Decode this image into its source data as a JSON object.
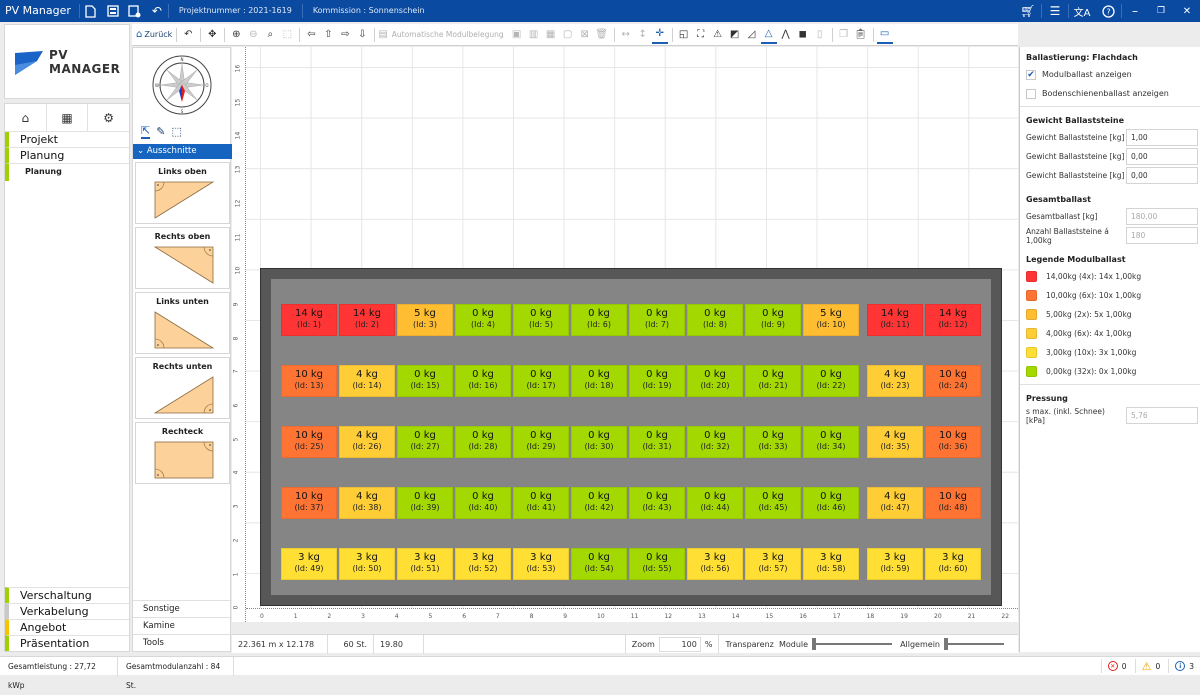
{
  "titlebar": {
    "app_name": "PV Manager",
    "projektnummer_label": "Projektnummer :",
    "projektnummer": "2021-1619",
    "kommission_label": "Kommission :",
    "kommission": "Sonnenschein",
    "icons": [
      "new-document-icon",
      "save-icon",
      "save-as-icon",
      "undo-icon",
      "cart-icon",
      "list-icon",
      "translate-icon",
      "help-icon",
      "minimize-icon",
      "restore-icon",
      "close-icon"
    ]
  },
  "logo": {
    "text": "PV MANAGER"
  },
  "nav": {
    "tabs": [
      {
        "icon": "home-icon"
      },
      {
        "icon": "widgets-icon"
      },
      {
        "icon": "gear-icon"
      }
    ],
    "items_top": [
      {
        "label": "Projekt",
        "color": "#9fd100"
      },
      {
        "label": "Planung",
        "color": "#9fd100"
      }
    ],
    "sub_item": "Planung",
    "items_bottom": [
      {
        "label": "Verschaltung",
        "color": "#9fd100"
      },
      {
        "label": "Verkabelung",
        "color": "#c8c8c8"
      },
      {
        "label": "Angebot",
        "color": "#f5c400"
      },
      {
        "label": "Präsentation",
        "color": "#9fd100"
      }
    ]
  },
  "toolbar": {
    "back_label": "Zurück",
    "auto_label": "Automatische Modulbelegung"
  },
  "side2": {
    "section": "Ausschnitte",
    "shapes": [
      {
        "label": "Links oben"
      },
      {
        "label": "Rechts oben"
      },
      {
        "label": "Links unten"
      },
      {
        "label": "Rechts unten"
      },
      {
        "label": "Rechteck"
      }
    ],
    "bottom": [
      "Sonstige",
      "Kamine",
      "Tools"
    ]
  },
  "canvas": {
    "h_ruler": [
      "0",
      "1",
      "2",
      "3",
      "4",
      "5",
      "6",
      "7",
      "8",
      "9",
      "10",
      "11",
      "12",
      "13",
      "14",
      "15",
      "16",
      "17",
      "18",
      "19",
      "20",
      "21",
      "22"
    ],
    "v_ruler": [
      "16",
      "15",
      "14",
      "13",
      "12",
      "11",
      "10",
      "9",
      "8",
      "7",
      "6",
      "5",
      "4",
      "3",
      "2",
      "1",
      "0"
    ],
    "colors": {
      "14": "#ff3535",
      "10": "#ff7433",
      "5": "#ffbd32",
      "4": "#ffcd36",
      "3": "#ffdf33",
      "0": "#a3d900"
    },
    "rows": [
      [
        {
          "kg": "14",
          "id": "1"
        },
        {
          "kg": "14",
          "id": "2"
        },
        {
          "kg": "5",
          "id": "3"
        },
        {
          "kg": "0",
          "id": "4"
        },
        {
          "kg": "0",
          "id": "5"
        },
        {
          "kg": "0",
          "id": "6"
        },
        {
          "kg": "0",
          "id": "7"
        },
        {
          "kg": "0",
          "id": "8"
        },
        {
          "kg": "0",
          "id": "9"
        },
        {
          "kg": "5",
          "id": "10"
        },
        {
          "kg": "14",
          "id": "11"
        },
        {
          "kg": "14",
          "id": "12"
        }
      ],
      [
        {
          "kg": "10",
          "id": "13"
        },
        {
          "kg": "4",
          "id": "14"
        },
        {
          "kg": "0",
          "id": "15"
        },
        {
          "kg": "0",
          "id": "16"
        },
        {
          "kg": "0",
          "id": "17"
        },
        {
          "kg": "0",
          "id": "18"
        },
        {
          "kg": "0",
          "id": "19"
        },
        {
          "kg": "0",
          "id": "20"
        },
        {
          "kg": "0",
          "id": "21"
        },
        {
          "kg": "0",
          "id": "22"
        },
        {
          "kg": "4",
          "id": "23"
        },
        {
          "kg": "10",
          "id": "24"
        }
      ],
      [
        {
          "kg": "10",
          "id": "25"
        },
        {
          "kg": "4",
          "id": "26"
        },
        {
          "kg": "0",
          "id": "27"
        },
        {
          "kg": "0",
          "id": "28"
        },
        {
          "kg": "0",
          "id": "29"
        },
        {
          "kg": "0",
          "id": "30"
        },
        {
          "kg": "0",
          "id": "31"
        },
        {
          "kg": "0",
          "id": "32"
        },
        {
          "kg": "0",
          "id": "33"
        },
        {
          "kg": "0",
          "id": "34"
        },
        {
          "kg": "4",
          "id": "35"
        },
        {
          "kg": "10",
          "id": "36"
        }
      ],
      [
        {
          "kg": "10",
          "id": "37"
        },
        {
          "kg": "4",
          "id": "38"
        },
        {
          "kg": "0",
          "id": "39"
        },
        {
          "kg": "0",
          "id": "40"
        },
        {
          "kg": "0",
          "id": "41"
        },
        {
          "kg": "0",
          "id": "42"
        },
        {
          "kg": "0",
          "id": "43"
        },
        {
          "kg": "0",
          "id": "44"
        },
        {
          "kg": "0",
          "id": "45"
        },
        {
          "kg": "0",
          "id": "46"
        },
        {
          "kg": "4",
          "id": "47"
        },
        {
          "kg": "10",
          "id": "48"
        }
      ],
      [
        {
          "kg": "3",
          "id": "49"
        },
        {
          "kg": "3",
          "id": "50"
        },
        {
          "kg": "3",
          "id": "51"
        },
        {
          "kg": "3",
          "id": "52"
        },
        {
          "kg": "3",
          "id": "53"
        },
        {
          "kg": "0",
          "id": "54"
        },
        {
          "kg": "0",
          "id": "55"
        },
        {
          "kg": "3",
          "id": "56"
        },
        {
          "kg": "3",
          "id": "57"
        },
        {
          "kg": "3",
          "id": "58"
        },
        {
          "kg": "3",
          "id": "59"
        },
        {
          "kg": "3",
          "id": "60"
        }
      ]
    ]
  },
  "canvas_status": {
    "dimensions": "22.361  m   x   12.178  m",
    "count": "60  St.",
    "power": "19.80  kWp",
    "zoom_label": "Zoom",
    "zoom_value": "100",
    "zoom_unit": "%",
    "transparency_label": "Transparenz",
    "module_label": "Module",
    "general_label": "Allgemein"
  },
  "right_panel": {
    "title": "Ballastierung: Flachdach",
    "check_modulballast": "Modulballast anzeigen",
    "check_bodenschiene": "Bodenschienenballast anzeigen",
    "gewicht_title": "Gewicht Ballaststeine",
    "gewicht_rows": [
      {
        "label": "Gewicht Ballaststeine [kg]",
        "value": "1,00"
      },
      {
        "label": "Gewicht Ballaststeine [kg]",
        "value": "0,00"
      },
      {
        "label": "Gewicht Ballaststeine [kg]",
        "value": "0,00"
      }
    ],
    "gesamt_title": "Gesamtballast",
    "gesamt_rows": [
      {
        "label": "Gesamtballast [kg]",
        "value": "180,00"
      },
      {
        "label": "Anzahl Ballaststeine á 1,00kg",
        "value": "180"
      }
    ],
    "legend_title": "Legende Modulballast",
    "legend": [
      {
        "color": "#ff3535",
        "text": "14,00kg (4x): 14x 1,00kg"
      },
      {
        "color": "#ff7433",
        "text": "10,00kg (6x): 10x 1,00kg"
      },
      {
        "color": "#ffbd32",
        "text": "5,00kg (2x): 5x 1,00kg"
      },
      {
        "color": "#ffcd36",
        "text": "4,00kg (6x): 4x 1,00kg"
      },
      {
        "color": "#ffdf33",
        "text": "3,00kg (10x): 3x 1,00kg"
      },
      {
        "color": "#a3d900",
        "text": "0,00kg (32x): 0x 1,00kg"
      }
    ],
    "pressung_title": "Pressung",
    "pressung_label": "s max. (inkl. Schnee) [kPa]",
    "pressung_value": "5,76"
  },
  "footer": {
    "gesamtleistung": "Gesamtleistung :  27,72 kWp",
    "gesamtmodulanzahl": "Gesamtmodulanzahl :  84 St.",
    "errors": "0",
    "warnings": "0",
    "infos": "3"
  }
}
